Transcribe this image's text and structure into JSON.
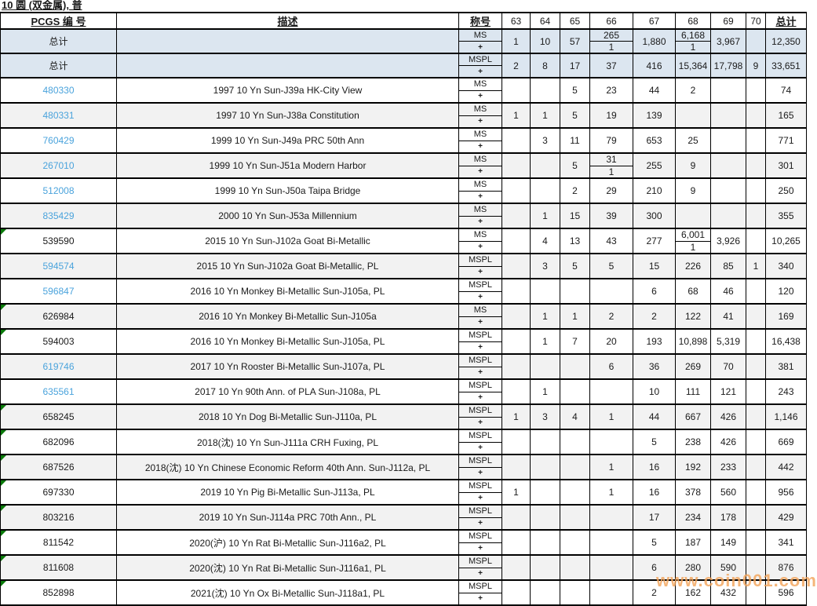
{
  "title": "10 圆 (双金属), 普",
  "watermark": "www.coin001.com",
  "colors": {
    "link_blue": "#4aa3dc",
    "marker_green": "#0a7a0a",
    "total_row_bg": "#dce6f0",
    "alt_row_bg": "#f2f2f2",
    "watermark_orange": "#f3a357",
    "border": "#000000"
  },
  "table": {
    "headers": {
      "pcgs": "PCGS 编 号",
      "desc": "描述",
      "designation": "称号",
      "grades": [
        "63",
        "64",
        "65",
        "66",
        "67",
        "68",
        "69",
        "70"
      ],
      "total": "总计"
    },
    "total_rows": [
      {
        "label": "总计",
        "designation": "MS",
        "plus": "+",
        "cells": [
          "1",
          "10",
          "57",
          {
            "top": "265",
            "bottom": "1"
          },
          "1,880",
          {
            "top": "6,168",
            "bottom": "1"
          },
          "3,967",
          ""
        ],
        "total": "12,350"
      },
      {
        "label": "总计",
        "designation": "MSPL",
        "plus": "+",
        "cells": [
          "2",
          "8",
          "17",
          "37",
          "416",
          "15,364",
          "17,798",
          "9"
        ],
        "total": "33,651"
      }
    ],
    "rows": [
      {
        "pcgs": "480330",
        "link": true,
        "marker": false,
        "desc": "1997 10 Yn Sun-J39a HK-City View",
        "designation": "MS",
        "plus": "+",
        "cells": [
          "",
          "",
          "5",
          "23",
          "44",
          "2",
          "",
          ""
        ],
        "total": "74"
      },
      {
        "pcgs": "480331",
        "link": true,
        "marker": false,
        "desc": "1997 10 Yn Sun-J38a Constitution",
        "designation": "MS",
        "plus": "+",
        "cells": [
          "1",
          "1",
          "5",
          "19",
          "139",
          "",
          "",
          ""
        ],
        "total": "165"
      },
      {
        "pcgs": "760429",
        "link": true,
        "marker": false,
        "desc": "1999 10 Yn Sun-J49a PRC 50th Ann",
        "designation": "MS",
        "plus": "+",
        "cells": [
          "",
          "3",
          "11",
          "79",
          "653",
          "25",
          "",
          ""
        ],
        "total": "771"
      },
      {
        "pcgs": "267010",
        "link": true,
        "marker": false,
        "desc": "1999 10 Yn Sun-J51a Modern Harbor",
        "designation": "MS",
        "plus": "+",
        "cells": [
          "",
          "",
          "5",
          {
            "top": "31",
            "bottom": "1"
          },
          "255",
          "9",
          "",
          ""
        ],
        "total": "301"
      },
      {
        "pcgs": "512008",
        "link": true,
        "marker": false,
        "desc": "1999 10 Yn Sun-J50a Taipa Bridge",
        "designation": "MS",
        "plus": "+",
        "cells": [
          "",
          "",
          "2",
          "29",
          "210",
          "9",
          "",
          ""
        ],
        "total": "250"
      },
      {
        "pcgs": "835429",
        "link": true,
        "marker": false,
        "desc": "2000 10 Yn Sun-J53a Millennium",
        "designation": "MS",
        "plus": "+",
        "cells": [
          "",
          "1",
          "15",
          "39",
          "300",
          "",
          "",
          ""
        ],
        "total": "355"
      },
      {
        "pcgs": "539590",
        "link": false,
        "marker": true,
        "desc": "2015 10 Yn Sun-J102a Goat Bi-Metallic",
        "designation": "MS",
        "plus": "+",
        "cells": [
          "",
          "4",
          "13",
          "43",
          "277",
          {
            "top": "6,001",
            "bottom": "1"
          },
          "3,926",
          ""
        ],
        "total": "10,265"
      },
      {
        "pcgs": "594574",
        "link": true,
        "marker": false,
        "desc": "2015 10 Yn Sun-J102a Goat Bi-Metallic, PL",
        "designation": "MSPL",
        "plus": "+",
        "cells": [
          "",
          "3",
          "5",
          "5",
          "15",
          "226",
          "85",
          "1"
        ],
        "total": "340"
      },
      {
        "pcgs": "596847",
        "link": true,
        "marker": false,
        "desc": "2016 10 Yn Monkey Bi-Metallic Sun-J105a, PL",
        "designation": "MSPL",
        "plus": "+",
        "cells": [
          "",
          "",
          "",
          "",
          "6",
          "68",
          "46",
          ""
        ],
        "total": "120"
      },
      {
        "pcgs": "626984",
        "link": false,
        "marker": true,
        "desc": "2016 10 Yn Monkey Bi-Metallic Sun-J105a",
        "designation": "MS",
        "plus": "+",
        "cells": [
          "",
          "1",
          "1",
          "2",
          "2",
          "122",
          "41",
          ""
        ],
        "total": "169"
      },
      {
        "pcgs": "594003",
        "link": false,
        "marker": true,
        "desc": "2016 10 Yn Monkey Bi-Metallic Sun-J105a, PL",
        "designation": "MSPL",
        "plus": "+",
        "cells": [
          "",
          "1",
          "7",
          "20",
          "193",
          "10,898",
          "5,319",
          ""
        ],
        "total": "16,438"
      },
      {
        "pcgs": "619746",
        "link": true,
        "marker": false,
        "desc": "2017 10 Yn Rooster Bi-Metallic Sun-J107a, PL",
        "designation": "MSPL",
        "plus": "+",
        "cells": [
          "",
          "",
          "",
          "6",
          "36",
          "269",
          "70",
          ""
        ],
        "total": "381"
      },
      {
        "pcgs": "635561",
        "link": true,
        "marker": false,
        "desc": "2017 10 Yn 90th Ann. of PLA Sun-J108a, PL",
        "designation": "MSPL",
        "plus": "+",
        "cells": [
          "",
          "1",
          "",
          "",
          "10",
          "111",
          "121",
          ""
        ],
        "total": "243"
      },
      {
        "pcgs": "658245",
        "link": false,
        "marker": true,
        "desc": "2018 10 Yn Dog Bi-Metallic Sun-J110a, PL",
        "designation": "MSPL",
        "plus": "+",
        "cells": [
          "1",
          "3",
          "4",
          "1",
          "44",
          "667",
          "426",
          ""
        ],
        "total": "1,146"
      },
      {
        "pcgs": "682096",
        "link": false,
        "marker": true,
        "desc": "2018(沈) 10 Yn Sun-J111a CRH Fuxing, PL",
        "designation": "MSPL",
        "plus": "+",
        "cells": [
          "",
          "",
          "",
          "",
          "5",
          "238",
          "426",
          ""
        ],
        "total": "669"
      },
      {
        "pcgs": "687526",
        "link": false,
        "marker": true,
        "desc": "2018(沈) 10 Yn Chinese Economic Reform 40th Ann. Sun-J112a, PL",
        "designation": "MSPL",
        "plus": "+",
        "cells": [
          "",
          "",
          "",
          "1",
          "16",
          "192",
          "233",
          ""
        ],
        "total": "442"
      },
      {
        "pcgs": "697330",
        "link": false,
        "marker": true,
        "desc": "2019 10 Yn Pig Bi-Metallic Sun-J113a, PL",
        "designation": "MSPL",
        "plus": "+",
        "cells": [
          "1",
          "",
          "",
          "1",
          "16",
          "378",
          "560",
          ""
        ],
        "total": "956"
      },
      {
        "pcgs": "803216",
        "link": false,
        "marker": true,
        "desc": "2019 10 Yn Sun-J114a PRC 70th Ann., PL",
        "designation": "MSPL",
        "plus": "+",
        "cells": [
          "",
          "",
          "",
          "",
          "17",
          "234",
          "178",
          ""
        ],
        "total": "429"
      },
      {
        "pcgs": "811542",
        "link": false,
        "marker": true,
        "desc": "2020(沪) 10 Yn Rat Bi-Metallic Sun-J116a2, PL",
        "designation": "MSPL",
        "plus": "+",
        "cells": [
          "",
          "",
          "",
          "",
          "5",
          "187",
          "149",
          ""
        ],
        "total": "341"
      },
      {
        "pcgs": "811608",
        "link": false,
        "marker": true,
        "desc": "2020(沈) 10 Yn Rat Bi-Metallic Sun-J116a1, PL",
        "designation": "MSPL",
        "plus": "+",
        "cells": [
          "",
          "",
          "",
          "",
          "6",
          "280",
          "590",
          ""
        ],
        "total": "876"
      },
      {
        "pcgs": "852898",
        "link": false,
        "marker": true,
        "desc": "2021(沈) 10 Yn Ox Bi-Metallic Sun-J118a1, PL",
        "designation": "MSPL",
        "plus": "+",
        "cells": [
          "",
          "",
          "",
          "",
          "2",
          "162",
          "432",
          ""
        ],
        "total": "596"
      }
    ]
  }
}
